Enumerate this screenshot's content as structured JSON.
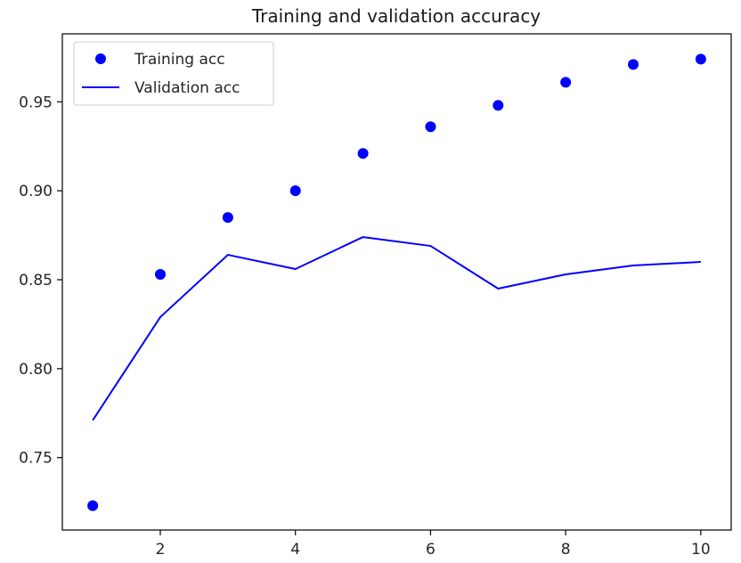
{
  "chart_data": {
    "type": "line",
    "title": "Training and validation accuracy",
    "xlabel": "",
    "ylabel": "",
    "x": [
      1,
      2,
      3,
      4,
      5,
      6,
      7,
      8,
      9,
      10
    ],
    "xlim": [
      0.55,
      10.45
    ],
    "ylim": [
      0.7093,
      0.9882
    ],
    "x_ticks": [
      2,
      4,
      6,
      8,
      10
    ],
    "x_tick_labels": [
      "2",
      "4",
      "6",
      "8",
      "10"
    ],
    "y_ticks": [
      0.75,
      0.8,
      0.85,
      0.9,
      0.95
    ],
    "y_tick_labels": [
      "0.75",
      "0.80",
      "0.85",
      "0.90",
      "0.95"
    ],
    "grid": false,
    "legend_position": "top-left",
    "series": [
      {
        "name": "Training acc",
        "style": "markers",
        "color": "#0000ff",
        "values": [
          0.723,
          0.853,
          0.885,
          0.9,
          0.921,
          0.936,
          0.948,
          0.961,
          0.971,
          0.974
        ]
      },
      {
        "name": "Validation acc",
        "style": "line",
        "color": "#0000ff",
        "values": [
          0.771,
          0.829,
          0.864,
          0.856,
          0.874,
          0.869,
          0.845,
          0.853,
          0.858,
          0.86
        ]
      }
    ]
  }
}
